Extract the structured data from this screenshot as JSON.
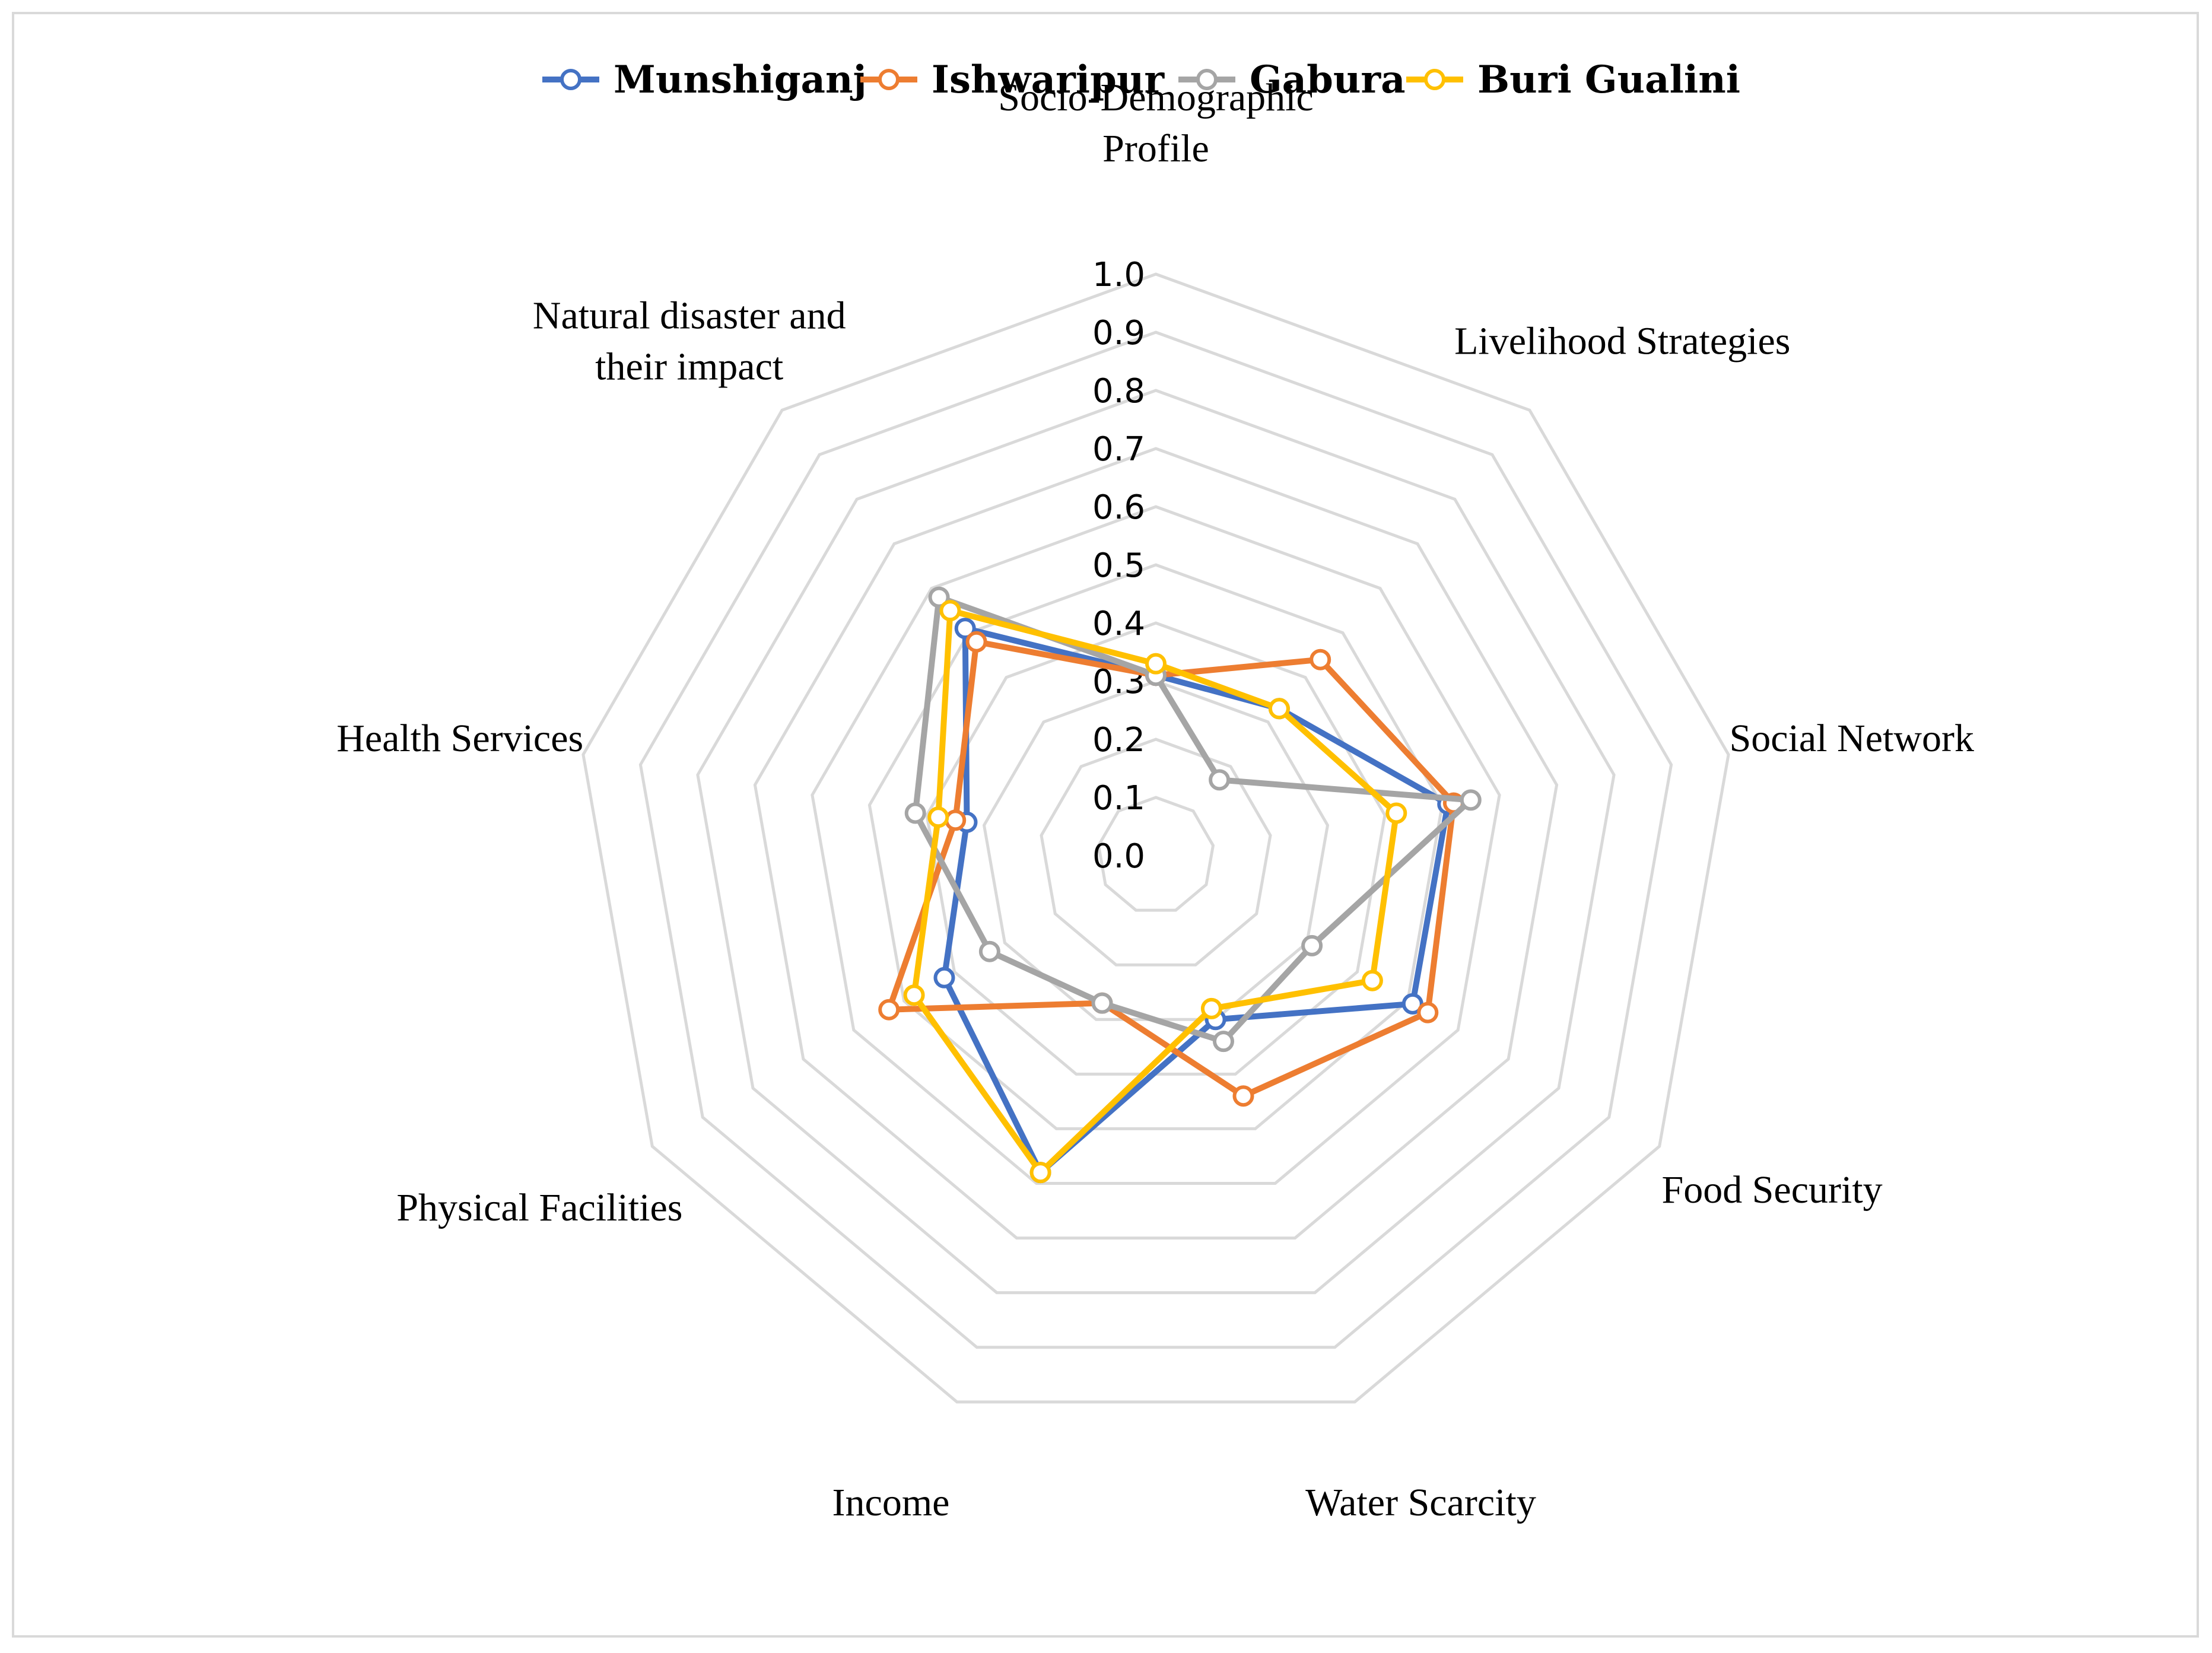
{
  "chart_data": {
    "type": "radar",
    "title": "",
    "range": [
      0.0,
      1.0
    ],
    "tick_step": 0.1,
    "tick_labels": [
      "0.0",
      "0.1",
      "0.2",
      "0.3",
      "0.4",
      "0.5",
      "0.6",
      "0.7",
      "0.8",
      "0.9",
      "1.0"
    ],
    "legend_position": "top",
    "axes": [
      {
        "lines": [
          "Socio-Demographic",
          "Profile"
        ]
      },
      {
        "lines": [
          "Livelihood Strategies"
        ]
      },
      {
        "lines": [
          "Social Network"
        ]
      },
      {
        "lines": [
          "Food Security"
        ]
      },
      {
        "lines": [
          "Water Scarcity"
        ]
      },
      {
        "lines": [
          "Income"
        ]
      },
      {
        "lines": [
          "Physical Facilities"
        ]
      },
      {
        "lines": [
          "Health Services"
        ]
      },
      {
        "lines": [
          "Natural disaster and",
          "their impact"
        ]
      }
    ],
    "series": [
      {
        "name": "Munshiganj",
        "color": "#4472C4",
        "values": [
          0.31,
          0.33,
          0.51,
          0.51,
          0.3,
          0.58,
          0.42,
          0.33,
          0.51
        ]
      },
      {
        "name": "Ishwaripur",
        "color": "#ED7D31",
        "values": [
          0.31,
          0.44,
          0.52,
          0.54,
          0.44,
          0.27,
          0.53,
          0.35,
          0.48
        ]
      },
      {
        "name": "Gabura",
        "color": "#A5A5A5",
        "values": [
          0.31,
          0.17,
          0.55,
          0.31,
          0.34,
          0.27,
          0.33,
          0.42,
          0.58
        ]
      },
      {
        "name": "Buri Gualini",
        "color": "#FFC000",
        "values": [
          0.33,
          0.33,
          0.42,
          0.43,
          0.28,
          0.58,
          0.48,
          0.38,
          0.55
        ]
      }
    ]
  }
}
